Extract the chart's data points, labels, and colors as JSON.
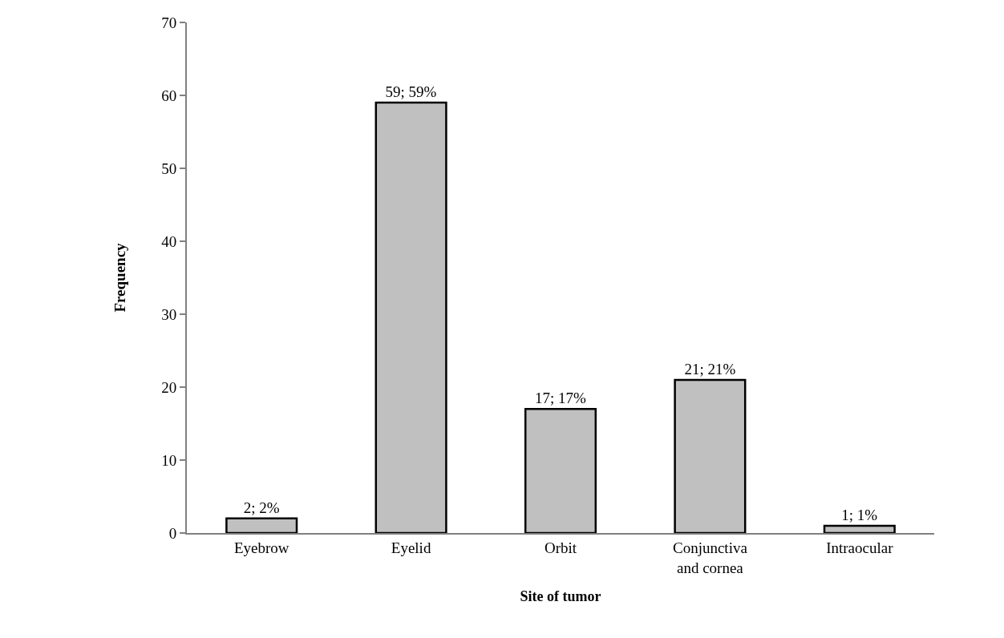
{
  "chart_data": {
    "type": "bar",
    "xlabel": "Site of tumor",
    "ylabel": "Frequency",
    "categories": [
      "Eyebrow",
      "Eyelid",
      "Orbit",
      "Conjunctiva and cornea",
      "Intraocular"
    ],
    "values": [
      2,
      59,
      17,
      21,
      1
    ],
    "value_labels": [
      "2; 2%",
      "59; 59%",
      "17; 17%",
      "21; 21%",
      "1; 1%"
    ],
    "color": "#c0c0c0",
    "ylim": [
      0,
      70
    ],
    "yticks": [
      0,
      10,
      20,
      30,
      40,
      50,
      60,
      70
    ]
  }
}
